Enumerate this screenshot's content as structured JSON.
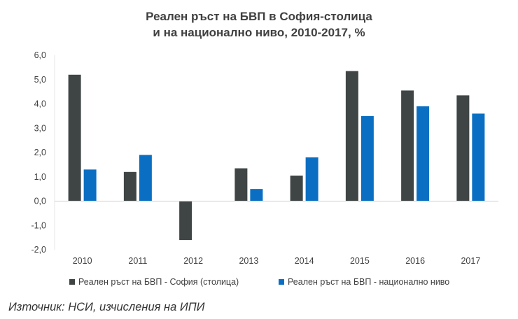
{
  "chart_data": {
    "type": "bar",
    "title_line1": "Реален ръст на БВП в София-столица",
    "title_line2": "и на национално ниво, 2010-2017, %",
    "categories": [
      "2010",
      "2011",
      "2012",
      "2013",
      "2014",
      "2015",
      "2016",
      "2017"
    ],
    "series": [
      {
        "name": "Реален ръст на БВП - София (столица)",
        "color": "#3f4444",
        "values": [
          5.2,
          1.2,
          -1.6,
          1.35,
          1.05,
          5.35,
          4.55,
          4.35
        ]
      },
      {
        "name": "Реален ръст на БВП - национално ниво",
        "color": "#0a6fc2",
        "values": [
          1.3,
          1.9,
          null,
          0.5,
          1.8,
          3.5,
          3.9,
          3.6
        ]
      }
    ],
    "ylim": [
      -2.0,
      6.0
    ],
    "yticks": [
      "-2,0",
      "-1,0",
      "0,0",
      "1,0",
      "2,0",
      "3,0",
      "4,0",
      "5,0",
      "6,0"
    ],
    "ytick_values": [
      -2,
      -1,
      0,
      1,
      2,
      3,
      4,
      5,
      6
    ],
    "grid": false,
    "legend_position": "bottom"
  },
  "source_text": "Източник: НСИ, изчисления на ИПИ"
}
